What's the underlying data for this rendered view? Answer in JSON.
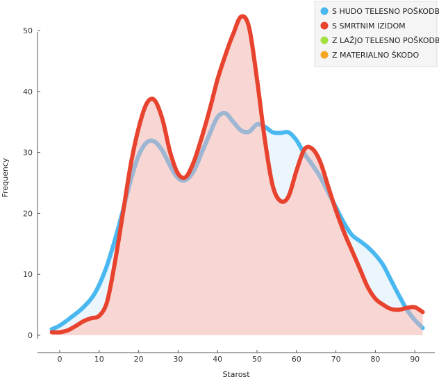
{
  "chart_data": {
    "type": "area",
    "xlabel": "Starost",
    "ylabel": "Frequency",
    "xlim": [
      -5,
      95
    ],
    "ylim": [
      0,
      52
    ],
    "x_ticks": [
      0,
      10,
      20,
      30,
      40,
      50,
      60,
      70,
      80,
      90
    ],
    "y_ticks": [
      0,
      10,
      20,
      30,
      40,
      50
    ],
    "grid": false,
    "legend_position": "top-right",
    "legend": [
      {
        "label": "S HUDO TELESNO POŠKODBO",
        "color": "#4ab8f0"
      },
      {
        "label": "S SMRTNIM IZIDOM",
        "color": "#e8432e"
      },
      {
        "label": "Z LAŽJO TELESNO POŠKODBO",
        "color": "#a4e040"
      },
      {
        "label": "Z MATERIALNO ŠKODO",
        "color": "#f5a623"
      }
    ],
    "series": [
      {
        "name": "S HUDO TELESNO POŠKODBO",
        "color": "#4ab8f0",
        "overlap_color": "#9fb6d2",
        "x": [
          -2,
          0,
          3,
          6,
          9,
          12,
          15,
          18,
          20,
          22,
          24,
          26,
          28,
          30,
          32,
          34,
          36,
          38,
          40,
          42,
          44,
          46,
          48,
          50,
          52,
          54,
          56,
          58,
          60,
          62,
          64,
          66,
          68,
          70,
          72,
          74,
          76,
          78,
          80,
          82,
          84,
          86,
          88,
          90,
          92
        ],
        "values": [
          1.0,
          1.6,
          3.0,
          4.6,
          7.0,
          11.5,
          18.0,
          25.5,
          29.5,
          31.6,
          31.8,
          30.3,
          27.8,
          25.8,
          25.5,
          27.0,
          30.0,
          33.0,
          35.8,
          36.4,
          35.0,
          33.6,
          33.4,
          34.6,
          34.2,
          33.3,
          33.2,
          33.3,
          32.0,
          29.8,
          28.0,
          26.0,
          23.5,
          21.0,
          18.5,
          16.5,
          15.5,
          14.5,
          13.2,
          11.5,
          9.0,
          6.5,
          4.2,
          2.5,
          1.2
        ]
      },
      {
        "name": "S SMRTNIM IZIDOM",
        "color": "#e8432e",
        "x": [
          -2,
          0,
          2,
          4,
          6,
          8,
          10,
          12,
          14,
          16,
          18,
          20,
          22,
          24,
          26,
          28,
          30,
          32,
          34,
          36,
          38,
          40,
          42,
          44,
          46,
          48,
          50,
          52,
          54,
          56,
          58,
          60,
          62,
          64,
          66,
          68,
          70,
          72,
          74,
          76,
          78,
          80,
          82,
          84,
          86,
          88,
          90,
          92
        ],
        "values": [
          0.5,
          0.5,
          0.8,
          1.5,
          2.3,
          2.8,
          3.2,
          5.5,
          12.0,
          20.0,
          28.0,
          34.0,
          38.0,
          38.6,
          35.5,
          30.0,
          26.5,
          26.0,
          28.5,
          32.5,
          37.0,
          42.0,
          46.0,
          49.5,
          52.3,
          50.5,
          42.0,
          32.0,
          24.5,
          22.0,
          22.8,
          27.0,
          30.5,
          30.6,
          28.5,
          24.5,
          20.5,
          17.0,
          14.0,
          11.0,
          8.0,
          6.0,
          5.0,
          4.3,
          4.2,
          4.5,
          4.6,
          3.8
        ]
      }
    ]
  }
}
